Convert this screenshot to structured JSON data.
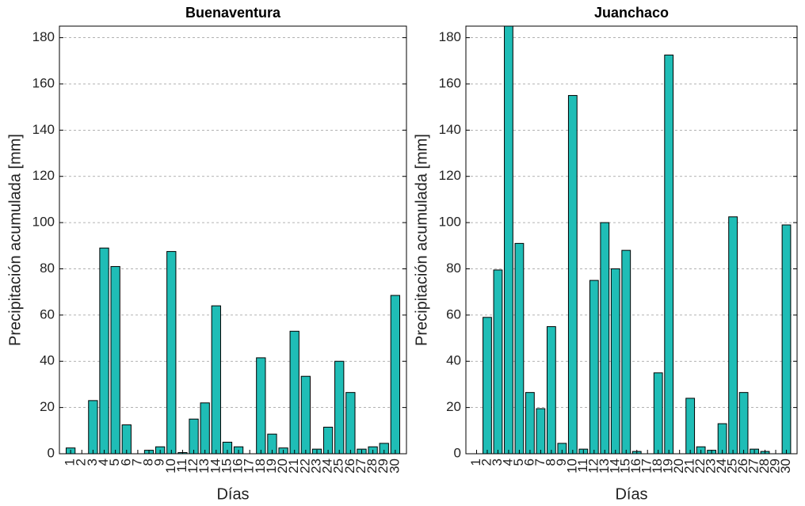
{
  "chart_data": [
    {
      "type": "bar",
      "title": "Buenaventura",
      "xlabel": "Días",
      "ylabel": "Precipitación acumulada [mm]",
      "categories": [
        "1",
        "2",
        "3",
        "4",
        "5",
        "6",
        "7",
        "8",
        "9",
        "10",
        "11",
        "12",
        "13",
        "14",
        "15",
        "16",
        "17",
        "18",
        "19",
        "20",
        "21",
        "22",
        "23",
        "24",
        "25",
        "26",
        "27",
        "28",
        "29",
        "30"
      ],
      "values": [
        2.5,
        0,
        23,
        89,
        81,
        12.5,
        0,
        1.5,
        3,
        87.5,
        0.5,
        15,
        22,
        64,
        5,
        3,
        0,
        41.5,
        8.5,
        2.5,
        53,
        33.5,
        2,
        11.5,
        40,
        26.5,
        2,
        3,
        4.5,
        68.5
      ],
      "color": "#1fbdb6",
      "ylim": [
        0,
        185
      ],
      "yticks": [
        0,
        20,
        40,
        60,
        80,
        100,
        120,
        140,
        160,
        180
      ],
      "grid": true
    },
    {
      "type": "bar",
      "title": "Juanchaco",
      "xlabel": "Días",
      "ylabel": "Precipitación acumulada [mm]",
      "categories": [
        "1",
        "2",
        "3",
        "4",
        "5",
        "6",
        "7",
        "8",
        "9",
        "10",
        "11",
        "12",
        "13",
        "14",
        "15",
        "16",
        "17",
        "18",
        "19",
        "20",
        "21",
        "22",
        "23",
        "24",
        "25",
        "26",
        "27",
        "28",
        "29",
        "30"
      ],
      "values": [
        0,
        59,
        79.5,
        185,
        91,
        26.5,
        19.5,
        55,
        4.5,
        155,
        2,
        75,
        100,
        80,
        88,
        1,
        0,
        35,
        172.5,
        0,
        24,
        3,
        1.5,
        13,
        102.5,
        26.5,
        2,
        1,
        0,
        99
      ],
      "color": "#1fbdb6",
      "ylim": [
        0,
        185
      ],
      "yticks": [
        0,
        20,
        40,
        60,
        80,
        100,
        120,
        140,
        160,
        180
      ],
      "grid": true
    }
  ]
}
